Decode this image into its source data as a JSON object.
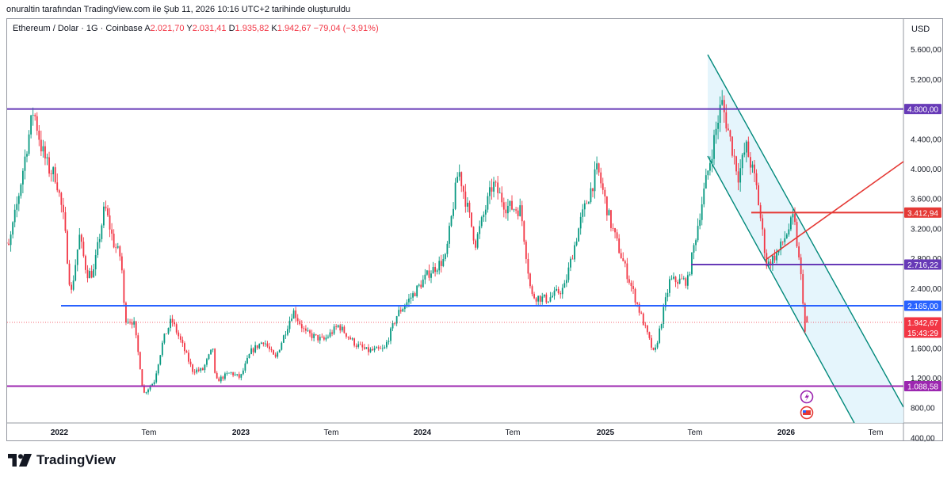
{
  "attribution": "onuraltin tarafından TradingView.com ile Şub 11, 2026 10:16 UTC+2 tarihinde oluşturuldu",
  "legend": {
    "symbol": "Ethereum / Dolar · 1G · Coinbase",
    "open_label": "A",
    "open": "2.021,70",
    "high_label": "Y",
    "high": "2.031,41",
    "low_label": "D",
    "low": "1.935,82",
    "close_label": "K",
    "close": "1.942,67",
    "change": "−79,04 (−3,91%)"
  },
  "currency": "USD",
  "brand": "TradingView",
  "colors": {
    "up": "#089981",
    "down": "#f23645",
    "purple": "#673ab7",
    "blue": "#2962ff",
    "magenta": "#9c27b0",
    "red": "#e53935",
    "channel": "#00897b",
    "channel_fill": "#e1f3fb"
  },
  "chart_data": {
    "type": "candlestick",
    "x_labels": [
      "2022",
      "Tem",
      "2023",
      "Tem",
      "2024",
      "Tem",
      "2025",
      "Tem",
      "2026",
      "Tem"
    ],
    "y_ticks": [
      "5.600,00",
      "5.200,00",
      "4.400,00",
      "4.000,00",
      "3.600,00",
      "3.200,00",
      "2.800,00",
      "2.400,00",
      "1.600,00",
      "1.200,00",
      "800,00",
      "400,00"
    ],
    "price_labels": [
      {
        "value": 4800,
        "text": "4.800,00",
        "color": "#673ab7"
      },
      {
        "value": 3412.94,
        "text": "3.412,94",
        "color": "#e53935"
      },
      {
        "value": 2716.22,
        "text": "2.716,22",
        "color": "#673ab7"
      },
      {
        "value": 2165,
        "text": "2.165,00",
        "color": "#2962ff"
      },
      {
        "value": 1942.67,
        "text": "1.942,67",
        "color": "#f23645"
      },
      {
        "value": 1088.58,
        "text": "1.088,58",
        "color": "#9c27b0"
      }
    ],
    "countdown": "15:43:29",
    "horizontal_levels": [
      {
        "value": 4800,
        "from": "2021-09",
        "color": "#673ab7"
      },
      {
        "value": 2165,
        "from": "2021-12",
        "color": "#2962ff"
      },
      {
        "value": 1088.58,
        "from": "2021-09",
        "color": "#9c27b0"
      },
      {
        "value": 2716.22,
        "from": "2024-12",
        "color": "#673ab7"
      },
      {
        "value": 3412.94,
        "from": "2025-10",
        "color": "#e53935"
      }
    ],
    "price_path": [
      [
        "2021-09-01",
        3200
      ],
      [
        "2021-09-20",
        2900
      ],
      [
        "2021-10-10",
        3600
      ],
      [
        "2021-10-25",
        4200
      ],
      [
        "2021-11-10",
        4800
      ],
      [
        "2021-11-25",
        4300
      ],
      [
        "2021-12-10",
        4000
      ],
      [
        "2021-12-25",
        3900
      ],
      [
        "2022-01-10",
        3300
      ],
      [
        "2022-01-24",
        2300
      ],
      [
        "2022-02-10",
        3100
      ],
      [
        "2022-02-25",
        2600
      ],
      [
        "2022-03-10",
        2600
      ],
      [
        "2022-04-02",
        3500
      ],
      [
        "2022-04-20",
        3000
      ],
      [
        "2022-05-05",
        2800
      ],
      [
        "2022-05-12",
        2000
      ],
      [
        "2022-05-30",
        1950
      ],
      [
        "2022-06-13",
        1300
      ],
      [
        "2022-06-18",
        980
      ],
      [
        "2022-07-10",
        1150
      ],
      [
        "2022-07-28",
        1700
      ],
      [
        "2022-08-14",
        1980
      ],
      [
        "2022-09-07",
        1600
      ],
      [
        "2022-09-25",
        1300
      ],
      [
        "2022-10-15",
        1300
      ],
      [
        "2022-11-05",
        1600
      ],
      [
        "2022-11-10",
        1150
      ],
      [
        "2022-12-10",
        1270
      ],
      [
        "2022-12-30",
        1200
      ],
      [
        "2023-01-20",
        1550
      ],
      [
        "2023-02-15",
        1700
      ],
      [
        "2023-03-10",
        1450
      ],
      [
        "2023-04-15",
        2100
      ],
      [
        "2023-05-10",
        1800
      ],
      [
        "2023-06-15",
        1700
      ],
      [
        "2023-07-15",
        1900
      ],
      [
        "2023-08-18",
        1650
      ],
      [
        "2023-09-11",
        1560
      ],
      [
        "2023-10-15",
        1580
      ],
      [
        "2023-11-10",
        2050
      ],
      [
        "2023-12-10",
        2300
      ],
      [
        "2024-01-12",
        2600
      ],
      [
        "2024-02-15",
        2800
      ],
      [
        "2024-03-12",
        4000
      ],
      [
        "2024-04-15",
        3000
      ],
      [
        "2024-05-20",
        3800
      ],
      [
        "2024-06-15",
        3500
      ],
      [
        "2024-07-15",
        3450
      ],
      [
        "2024-08-05",
        2300
      ],
      [
        "2024-09-06",
        2250
      ],
      [
        "2024-10-10",
        2400
      ],
      [
        "2024-11-12",
        3300
      ],
      [
        "2024-12-16",
        4000
      ],
      [
        "2025-01-10",
        3300
      ],
      [
        "2025-02-03",
        2800
      ],
      [
        "2025-03-10",
        2100
      ],
      [
        "2025-04-09",
        1500
      ],
      [
        "2025-05-10",
        2500
      ],
      [
        "2025-06-15",
        2500
      ],
      [
        "2025-07-15",
        3600
      ],
      [
        "2025-08-22",
        4900
      ],
      [
        "2025-09-25",
        3900
      ],
      [
        "2025-10-10",
        4300
      ],
      [
        "2025-10-30",
        3800
      ],
      [
        "2025-11-21",
        2700
      ],
      [
        "2025-12-15",
        2900
      ],
      [
        "2026-01-14",
        3350
      ],
      [
        "2026-01-31",
        2400
      ],
      [
        "2026-02-06",
        1750
      ],
      [
        "2026-02-11",
        1942.67
      ]
    ],
    "ylim": [
      200,
      6000
    ]
  }
}
